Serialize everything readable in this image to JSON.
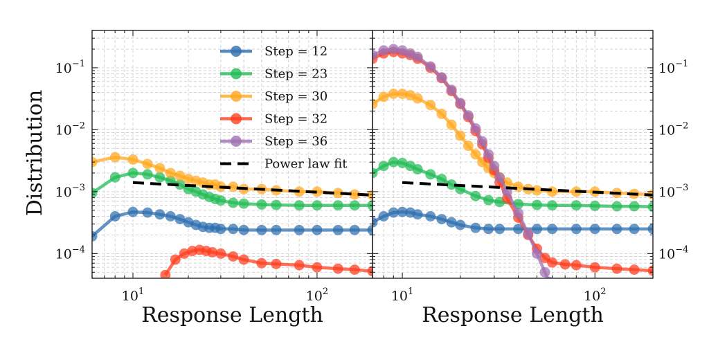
{
  "chart_data": [
    {
      "type": "line",
      "panel": "left",
      "xscale": "log",
      "yscale": "log",
      "xlim": [
        6,
        200
      ],
      "ylim": [
        4e-05,
        0.4
      ],
      "grid": true,
      "xlabel": "Response Length",
      "ylabel": "Distribution",
      "xtick_labels": [
        "10^1",
        "10^2"
      ],
      "ytick_labels": [
        "10^-4",
        "10^-3",
        "10^-2",
        "10^-1"
      ],
      "legend_position": "top-right",
      "series": [
        {
          "name": "Step = 12",
          "color": "#2f6fae",
          "marker": "circle",
          "x": [
            6,
            8,
            10,
            12,
            14,
            16,
            18,
            20,
            22,
            24,
            26,
            28,
            30,
            35,
            40,
            50,
            60,
            80,
            100,
            130,
            160,
            200
          ],
          "y": [
            0.00019,
            0.0004,
            0.00047,
            0.00046,
            0.00043,
            0.0004,
            0.00036,
            0.00032,
            0.00029,
            0.00027,
            0.00026,
            0.00026,
            0.00025,
            0.00025,
            0.00024,
            0.00024,
            0.00024,
            0.00024,
            0.00024,
            0.00024,
            0.00024,
            0.00024
          ]
        },
        {
          "name": "Step = 23",
          "color": "#22bb55",
          "marker": "circle",
          "x": [
            6,
            8,
            10,
            12,
            14,
            16,
            18,
            20,
            22,
            24,
            26,
            28,
            30,
            35,
            40,
            50,
            60,
            80,
            100,
            130,
            160,
            200
          ],
          "y": [
            0.00095,
            0.0017,
            0.002,
            0.0019,
            0.0017,
            0.0015,
            0.0013,
            0.0011,
            0.001,
            0.0009,
            0.00082,
            0.00076,
            0.00072,
            0.00066,
            0.00064,
            0.00062,
            0.00061,
            0.0006,
            0.0006,
            0.0006,
            0.0006,
            0.0006
          ]
        },
        {
          "name": "Step = 30",
          "color": "#ffa81f",
          "marker": "circle",
          "x": [
            6,
            8,
            10,
            12,
            14,
            16,
            18,
            20,
            22,
            24,
            26,
            28,
            30,
            35,
            40,
            50,
            60,
            80,
            100,
            130,
            160,
            200
          ],
          "y": [
            0.003,
            0.0036,
            0.0033,
            0.0028,
            0.0024,
            0.002,
            0.0018,
            0.0016,
            0.0015,
            0.0014,
            0.0013,
            0.0013,
            0.0012,
            0.0012,
            0.0011,
            0.0011,
            0.00105,
            0.001,
            0.001,
            0.00095,
            0.0009,
            0.00088
          ]
        },
        {
          "name": "Step = 32",
          "color": "#ff3d1f",
          "marker": "circle",
          "x": [
            15,
            17,
            19,
            21,
            23,
            25,
            27,
            30,
            35,
            40,
            50,
            60,
            80,
            100,
            130,
            160,
            200
          ],
          "y": [
            4.5e-05,
            8e-05,
            0.0001,
            0.00011,
            0.000115,
            0.00011,
            0.000105,
            0.0001,
            9e-05,
            8e-05,
            7e-05,
            6.8e-05,
            6.5e-05,
            6e-05,
            5.7e-05,
            5.5e-05,
            5.2e-05
          ]
        }
      ],
      "fit": {
        "name": "Power law fit",
        "color": "#000000",
        "dash": "dashed",
        "x": [
          10,
          200
        ],
        "y": [
          0.0014,
          0.00088
        ]
      }
    },
    {
      "type": "line",
      "panel": "right",
      "xscale": "log",
      "yscale": "log",
      "xlim": [
        7,
        200
      ],
      "ylim": [
        4e-05,
        0.4
      ],
      "grid": true,
      "xlabel": "Response Length",
      "xtick_labels": [
        "10^1",
        "10^2"
      ],
      "ytick_labels": [
        "10^-4",
        "10^-3",
        "10^-2",
        "10^-1"
      ],
      "series": [
        {
          "name": "Step = 12",
          "color": "#2f6fae",
          "marker": "circle",
          "x": [
            7,
            8,
            9,
            10,
            11,
            12,
            14,
            16,
            18,
            20,
            24,
            28,
            32,
            40,
            50,
            60,
            80,
            100,
            130,
            160,
            200
          ],
          "y": [
            0.00032,
            0.0004,
            0.00046,
            0.00047,
            0.00046,
            0.00043,
            0.0004,
            0.00036,
            0.00032,
            0.00029,
            0.00026,
            0.00025,
            0.00025,
            0.00025,
            0.00025,
            0.00025,
            0.00025,
            0.00025,
            0.00025,
            0.00025,
            0.00025
          ]
        },
        {
          "name": "Step = 23",
          "color": "#22bb55",
          "marker": "circle",
          "x": [
            7,
            8,
            9,
            10,
            11,
            12,
            14,
            16,
            18,
            20,
            24,
            28,
            32,
            40,
            50,
            60,
            80,
            100,
            130,
            160,
            200
          ],
          "y": [
            0.002,
            0.0026,
            0.003,
            0.0029,
            0.0026,
            0.0023,
            0.0019,
            0.0016,
            0.0013,
            0.0011,
            0.00085,
            0.00073,
            0.00068,
            0.00063,
            0.00061,
            0.0006,
            0.0006,
            0.00059,
            0.00058,
            0.00058,
            0.00057
          ]
        },
        {
          "name": "Step = 30",
          "color": "#ffa81f",
          "marker": "circle",
          "x": [
            7,
            8,
            9,
            10,
            11,
            12,
            14,
            16,
            18,
            20,
            22,
            24,
            26,
            28,
            30,
            32,
            35,
            40,
            45,
            50,
            60,
            80,
            100,
            130,
            160,
            200
          ],
          "y": [
            0.026,
            0.034,
            0.038,
            0.038,
            0.036,
            0.032,
            0.025,
            0.018,
            0.012,
            0.008,
            0.0055,
            0.004,
            0.003,
            0.0024,
            0.002,
            0.0017,
            0.0014,
            0.0012,
            0.0011,
            0.00105,
            0.001,
            0.001,
            0.001,
            0.00095,
            0.00092,
            0.0009
          ]
        },
        {
          "name": "Step = 32",
          "color": "#ff3d1f",
          "marker": "circle",
          "x": [
            7,
            8,
            9,
            10,
            11,
            12,
            14,
            16,
            18,
            20,
            22,
            24,
            26,
            28,
            30,
            32,
            35,
            40,
            45,
            50,
            55,
            60,
            70,
            80,
            100,
            130,
            160,
            200
          ],
          "y": [
            0.14,
            0.17,
            0.18,
            0.17,
            0.16,
            0.14,
            0.1,
            0.068,
            0.042,
            0.026,
            0.016,
            0.0095,
            0.0058,
            0.0035,
            0.0022,
            0.0014,
            0.00078,
            0.00038,
            0.0002,
            0.00012,
            8.5e-05,
            7.2e-05,
            6.7e-05,
            6.5e-05,
            6e-05,
            5.7e-05,
            5.5e-05,
            5.3e-05
          ]
        },
        {
          "name": "Step = 36",
          "color": "#9f70b3",
          "marker": "circle",
          "x": [
            7,
            8,
            9,
            10,
            11,
            12,
            14,
            16,
            18,
            20,
            22,
            24,
            26,
            28,
            30,
            32,
            35,
            40,
            45,
            50,
            55,
            58
          ],
          "y": [
            0.16,
            0.19,
            0.2,
            0.19,
            0.17,
            0.15,
            0.105,
            0.07,
            0.044,
            0.027,
            0.017,
            0.0105,
            0.0065,
            0.004,
            0.0026,
            0.0017,
            0.001,
            0.00045,
            0.00021,
            0.0001,
            5e-05,
            3.5e-05
          ]
        }
      ],
      "fit": {
        "name": "Power law fit",
        "color": "#000000",
        "dash": "dashed",
        "x": [
          10,
          200
        ],
        "y": [
          0.0014,
          0.00088
        ]
      }
    }
  ],
  "legend": {
    "items": [
      {
        "label": "Step = 12",
        "color": "#2f6fae",
        "kind": "marker-line"
      },
      {
        "label": "Step = 23",
        "color": "#22bb55",
        "kind": "marker-line"
      },
      {
        "label": "Step = 30",
        "color": "#ffa81f",
        "kind": "marker-line"
      },
      {
        "label": "Step = 32",
        "color": "#ff3d1f",
        "kind": "marker-line"
      },
      {
        "label": "Step = 36",
        "color": "#9f70b3",
        "kind": "marker-line"
      },
      {
        "label": "Power law fit",
        "color": "#000000",
        "kind": "dashed-line"
      }
    ]
  }
}
